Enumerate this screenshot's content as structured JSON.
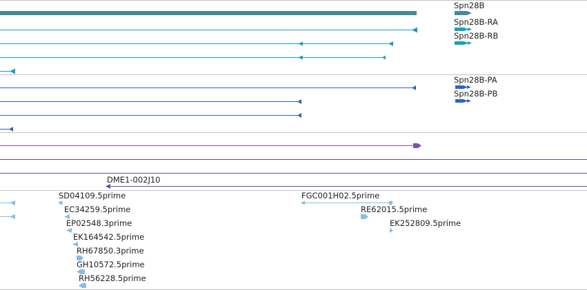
{
  "colors": {
    "gene": "#3f8c96",
    "mrna": "#1a9fbd",
    "protein": "#2e63c9",
    "purple": "#7b54a8",
    "est": "#86bde3",
    "separator": "#c4c4c4",
    "purple_line": "#6a4e93"
  },
  "gene": {
    "label": "Spn28B"
  },
  "transcripts": [
    {
      "label": "Spn28B-RA"
    },
    {
      "label": "Spn28B-RB"
    }
  ],
  "proteins": [
    {
      "label": "Spn28B-PA"
    },
    {
      "label": "Spn28B-PB"
    }
  ],
  "clone": {
    "label": "DME1-002J10"
  },
  "ests": [
    {
      "label": "SD04109.5prime"
    },
    {
      "label": "EC34259.5prime"
    },
    {
      "label": "EP02548.3prime"
    },
    {
      "label": "EK164542.5prime"
    },
    {
      "label": "RH67850.3prime"
    },
    {
      "label": "GH10572.5prime"
    },
    {
      "label": "RH56228.5prime"
    },
    {
      "label": "FGC001H02.5prime"
    },
    {
      "label": "RE62015.5prime"
    },
    {
      "label": "EK252809.5prime"
    }
  ]
}
